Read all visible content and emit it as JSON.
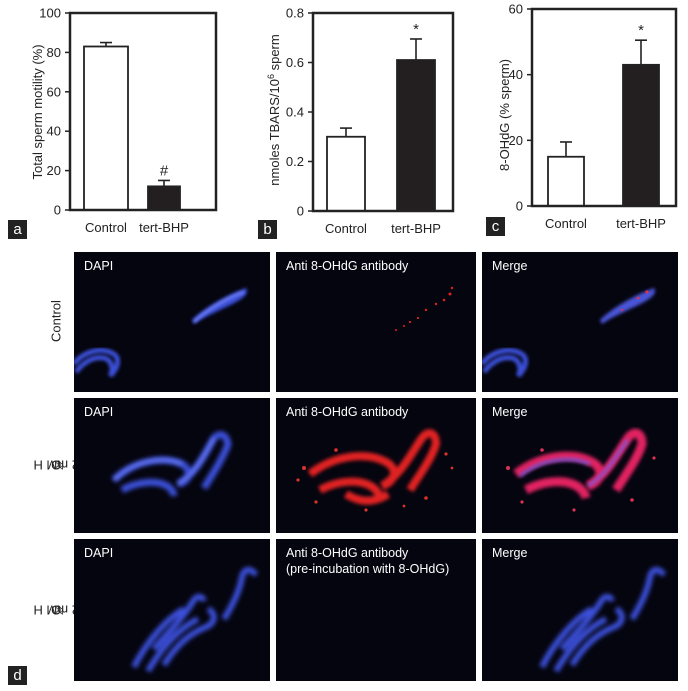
{
  "chart_data": [
    {
      "type": "bar",
      "panel": "a",
      "categories": [
        "Control",
        "tert-BHP"
      ],
      "values": [
        83,
        12
      ],
      "errors": [
        2,
        3
      ],
      "annotations": [
        "",
        "#"
      ],
      "ylabel": "Total sperm motility (%)",
      "ylim": [
        0,
        100
      ],
      "yticks": [
        0,
        20,
        40,
        60,
        80,
        100
      ],
      "fill": [
        "#ffffff",
        "#231f20"
      ]
    },
    {
      "type": "bar",
      "panel": "b",
      "categories": [
        "Control",
        "tert-BHP"
      ],
      "values": [
        0.3,
        0.61
      ],
      "errors": [
        0.035,
        0.085
      ],
      "annotations": [
        "",
        "*"
      ],
      "ylabel_main": "nmoles TBARS/10",
      "ylabel_sup": "6",
      "ylabel_tail": " sperm",
      "ylim": [
        0,
        0.8
      ],
      "yticks": [
        "0",
        "0.2",
        "0.4",
        "0.6",
        "0.8"
      ],
      "fill": [
        "#ffffff",
        "#231f20"
      ]
    },
    {
      "type": "bar",
      "panel": "c",
      "categories": [
        "Control",
        "tert-BHP"
      ],
      "values": [
        15,
        43
      ],
      "errors": [
        4.5,
        7.5
      ],
      "annotations": [
        "",
        "*"
      ],
      "ylabel": "8-OHdG (% sperm)",
      "ylim": [
        0,
        60
      ],
      "yticks": [
        0,
        20,
        40,
        60
      ],
      "fill": [
        "#ffffff",
        "#231f20"
      ]
    }
  ],
  "panel_d": {
    "letter": "d",
    "rows": [
      {
        "label": "Control",
        "label_sub": "",
        "label_tail": "",
        "tiles": [
          "DAPI",
          "Anti 8-OHdG antibody",
          "Merge"
        ]
      },
      {
        "label": "2 mM H",
        "label_sub": "2",
        "label_tail": "O",
        "label_sub2": "2",
        "tiles": [
          "DAPI",
          "Anti 8-OHdG antibody",
          "Merge"
        ]
      },
      {
        "label": "2 mM H",
        "label_sub": "2",
        "label_tail": "O",
        "label_sub2": "2",
        "tiles": [
          "DAPI",
          "Anti 8-OHdG antibody",
          "Merge"
        ],
        "tile2_line2": "(pre-incubation with 8-OHdG)"
      }
    ]
  },
  "colors": {
    "dapi": "#3a4fd8",
    "antibody": "#e02020",
    "merge": "#b03fd0",
    "background": "#050510"
  }
}
